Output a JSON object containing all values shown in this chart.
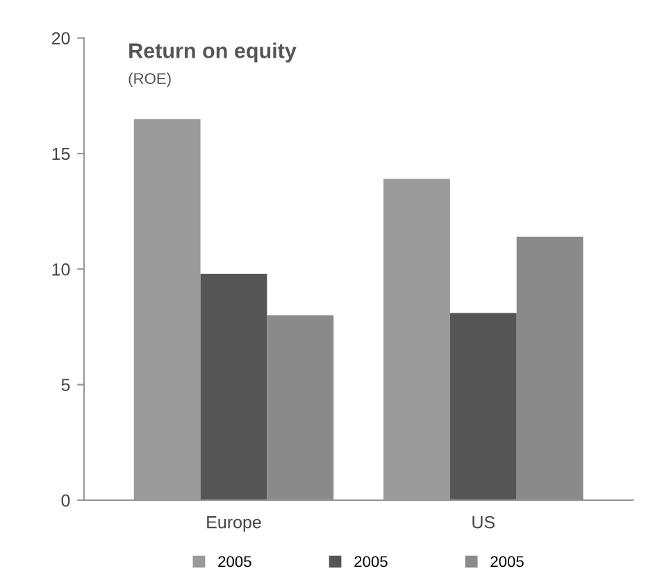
{
  "chart_data": {
    "type": "bar",
    "title": "Return on equity",
    "subtitle": "(ROE)",
    "categories": [
      "Europe",
      "US"
    ],
    "series": [
      {
        "name": "2005",
        "color": "#9a9a9a",
        "values": [
          16.5,
          13.9
        ]
      },
      {
        "name": "2005",
        "color": "#555555",
        "values": [
          9.8,
          8.1
        ]
      },
      {
        "name": "2005",
        "color": "#8a8a8a",
        "values": [
          8.0,
          11.4
        ]
      }
    ],
    "ylim": [
      0,
      20
    ],
    "yticks": [
      0,
      5,
      10,
      15,
      20
    ],
    "grid": false,
    "legend": "bottom"
  }
}
